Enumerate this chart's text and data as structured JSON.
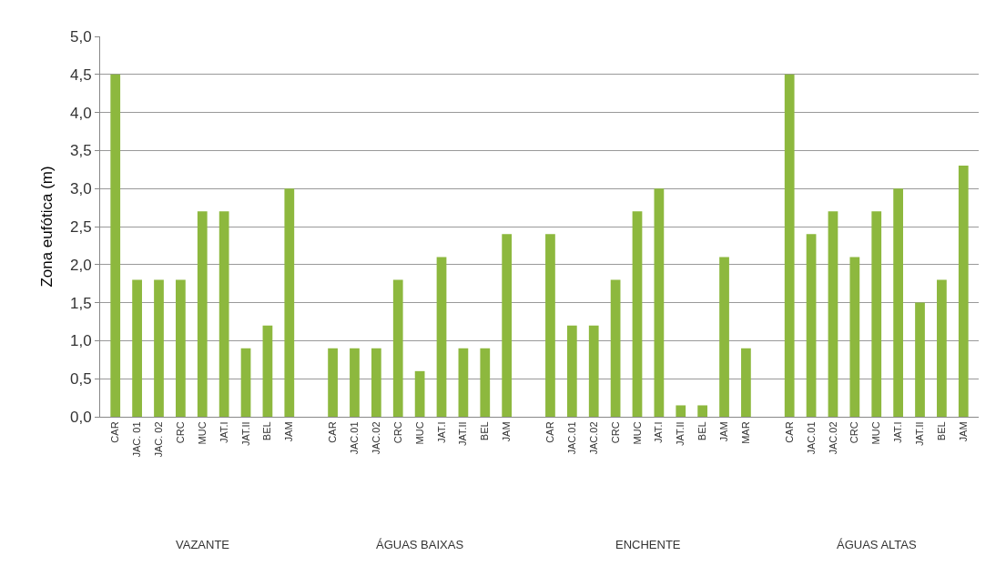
{
  "chart_data": {
    "type": "bar",
    "ylabel": "Zona eufótica (m)",
    "categories": [
      "CAR",
      "JAC. 01",
      "JAC. 02",
      "CRC",
      "MUC",
      "JAT.I",
      "JAT.II",
      "BEL",
      "JAM",
      null,
      "CAR",
      "JAC.01",
      "JAC.02",
      "CRC",
      "MUC",
      "JAT.I",
      "JAT.II",
      "BEL",
      "JAM",
      null,
      "CAR",
      "JAC.01",
      "JAC.02",
      "CRC",
      "MUC",
      "JAT.I",
      "JAT.II",
      "BEL",
      "JAM",
      "MAR",
      null,
      "CAR",
      "JAC.01",
      "JAC.02",
      "CRC",
      "MUC",
      "JAT.I",
      "JAT.II",
      "BEL",
      "JAM"
    ],
    "values": [
      4.5,
      1.8,
      1.8,
      1.8,
      2.7,
      2.7,
      0.9,
      1.2,
      3.0,
      null,
      0.9,
      0.9,
      0.9,
      1.8,
      0.6,
      2.1,
      0.9,
      0.9,
      2.4,
      null,
      2.4,
      1.2,
      1.2,
      1.8,
      2.7,
      3.0,
      0.15,
      0.15,
      2.1,
      0.9,
      null,
      4.5,
      2.4,
      2.7,
      2.1,
      2.7,
      3.0,
      1.5,
      1.8,
      3.3
    ],
    "color": "#8db83e",
    "ylim": [
      0,
      5
    ],
    "yticks": [
      {
        "value": 0,
        "label": "0,0"
      },
      {
        "value": 0.5,
        "label": "0,5"
      },
      {
        "value": 1,
        "label": "1,0"
      },
      {
        "value": 1.5,
        "label": "1,5"
      },
      {
        "value": 2,
        "label": "2,0"
      },
      {
        "value": 2.5,
        "label": "2,5"
      },
      {
        "value": 3,
        "label": "3,0"
      },
      {
        "value": 3.5,
        "label": "3,5"
      },
      {
        "value": 4,
        "label": "4,0"
      },
      {
        "value": 4.5,
        "label": "4,5"
      },
      {
        "value": 5,
        "label": "5,0"
      }
    ],
    "grid": "y",
    "annotations": [
      "VAZANTE",
      "ÁGUAS BAIXAS",
      "ENCHENTE",
      "ÁGUAS ALTAS"
    ]
  }
}
